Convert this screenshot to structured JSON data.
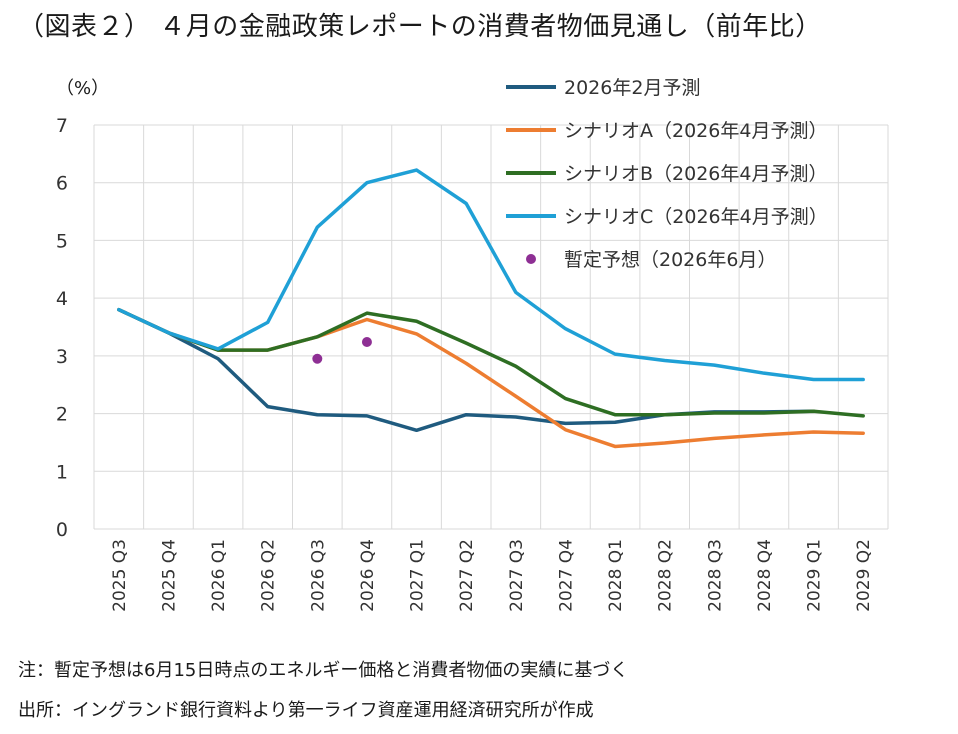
{
  "title": "（図表２） ４月の金融政策レポートの消費者物価見通し（前年比）",
  "unit_label": "（%）",
  "notes": {
    "line1": "注：暫定予想は6月15日時点のエネルギー価格と消費者物価の実績に基づく",
    "line2": "出所：イングランド銀行資料より第一ライフ資産運用経済研究所が作成"
  },
  "chart_data": {
    "type": "line",
    "title": "（図表２） ４月の金融政策レポートの消費者物価見通し（前年比）",
    "ylabel": "（%）",
    "xlabel": "",
    "ylim": [
      0,
      7
    ],
    "yticks": [
      0,
      1,
      2,
      3,
      4,
      5,
      6,
      7
    ],
    "grid": true,
    "legend_position": "top-right",
    "categories": [
      "2025 Q3",
      "2025 Q4",
      "2026 Q1",
      "2026 Q2",
      "2026 Q3",
      "2026 Q4",
      "2027 Q1",
      "2027 Q2",
      "2027 Q3",
      "2027 Q4",
      "2028 Q1",
      "2028 Q2",
      "2028 Q3",
      "2028 Q4",
      "2029 Q1",
      "2029 Q2"
    ],
    "series": [
      {
        "name": "2026年2月予測",
        "color": "#1f5b7f",
        "kind": "line",
        "values": [
          3.8,
          3.4,
          2.95,
          2.12,
          1.98,
          1.96,
          1.71,
          1.98,
          1.94,
          1.83,
          1.85,
          1.98,
          2.03,
          2.03,
          2.04,
          null
        ]
      },
      {
        "name": "シナリオA（2026年4月予測）",
        "color": "#ed7d31",
        "kind": "line",
        "values": [
          3.8,
          3.4,
          3.1,
          3.1,
          3.33,
          3.63,
          3.38,
          2.87,
          2.3,
          1.72,
          1.43,
          1.49,
          1.57,
          1.63,
          1.68,
          1.66
        ]
      },
      {
        "name": "シナリオB（2026年4月予測）",
        "color": "#2e6e23",
        "kind": "line",
        "values": [
          3.8,
          3.4,
          3.1,
          3.1,
          3.33,
          3.74,
          3.6,
          3.22,
          2.82,
          2.26,
          1.98,
          1.98,
          2.01,
          2.01,
          2.04,
          1.96
        ]
      },
      {
        "name": "シナリオC（2026年4月予測）",
        "color": "#1fa0d6",
        "kind": "line",
        "values": [
          3.8,
          3.4,
          3.12,
          3.58,
          5.23,
          6.0,
          6.22,
          5.64,
          4.1,
          3.47,
          3.03,
          2.92,
          2.84,
          2.7,
          2.59,
          2.59
        ]
      },
      {
        "name": "暫定予想（2026年6月）",
        "color": "#8e2f94",
        "kind": "scatter",
        "values": [
          null,
          null,
          null,
          null,
          2.95,
          3.24,
          null,
          null,
          null,
          null,
          null,
          null,
          null,
          null,
          null,
          null
        ]
      }
    ]
  }
}
